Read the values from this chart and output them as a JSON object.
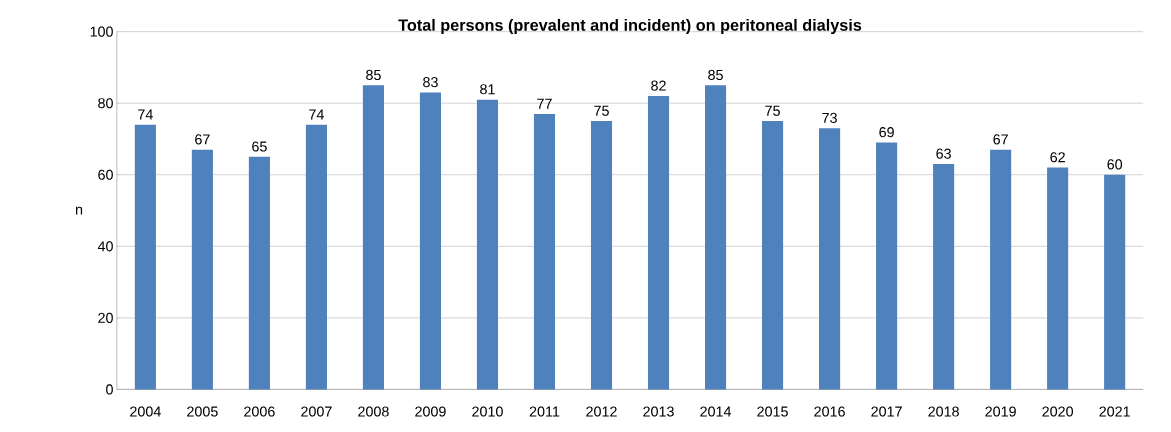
{
  "chart_data": {
    "type": "bar",
    "title": "Total persons (prevalent and incident) on peritoneal dialysis",
    "ylabel": "n",
    "categories": [
      "2004",
      "2005",
      "2006",
      "2007",
      "2008",
      "2009",
      "2010",
      "2011",
      "2012",
      "2013",
      "2014",
      "2015",
      "2016",
      "2017",
      "2018",
      "2019",
      "2020",
      "2021"
    ],
    "values": [
      74,
      67,
      65,
      74,
      85,
      83,
      81,
      77,
      75,
      82,
      85,
      75,
      73,
      69,
      63,
      67,
      62,
      60
    ],
    "color": "#4f81bd",
    "ylim": [
      0,
      100
    ],
    "yticks": [
      0,
      20,
      40,
      60,
      80,
      100
    ],
    "grid": "y",
    "data_labels": true
  }
}
